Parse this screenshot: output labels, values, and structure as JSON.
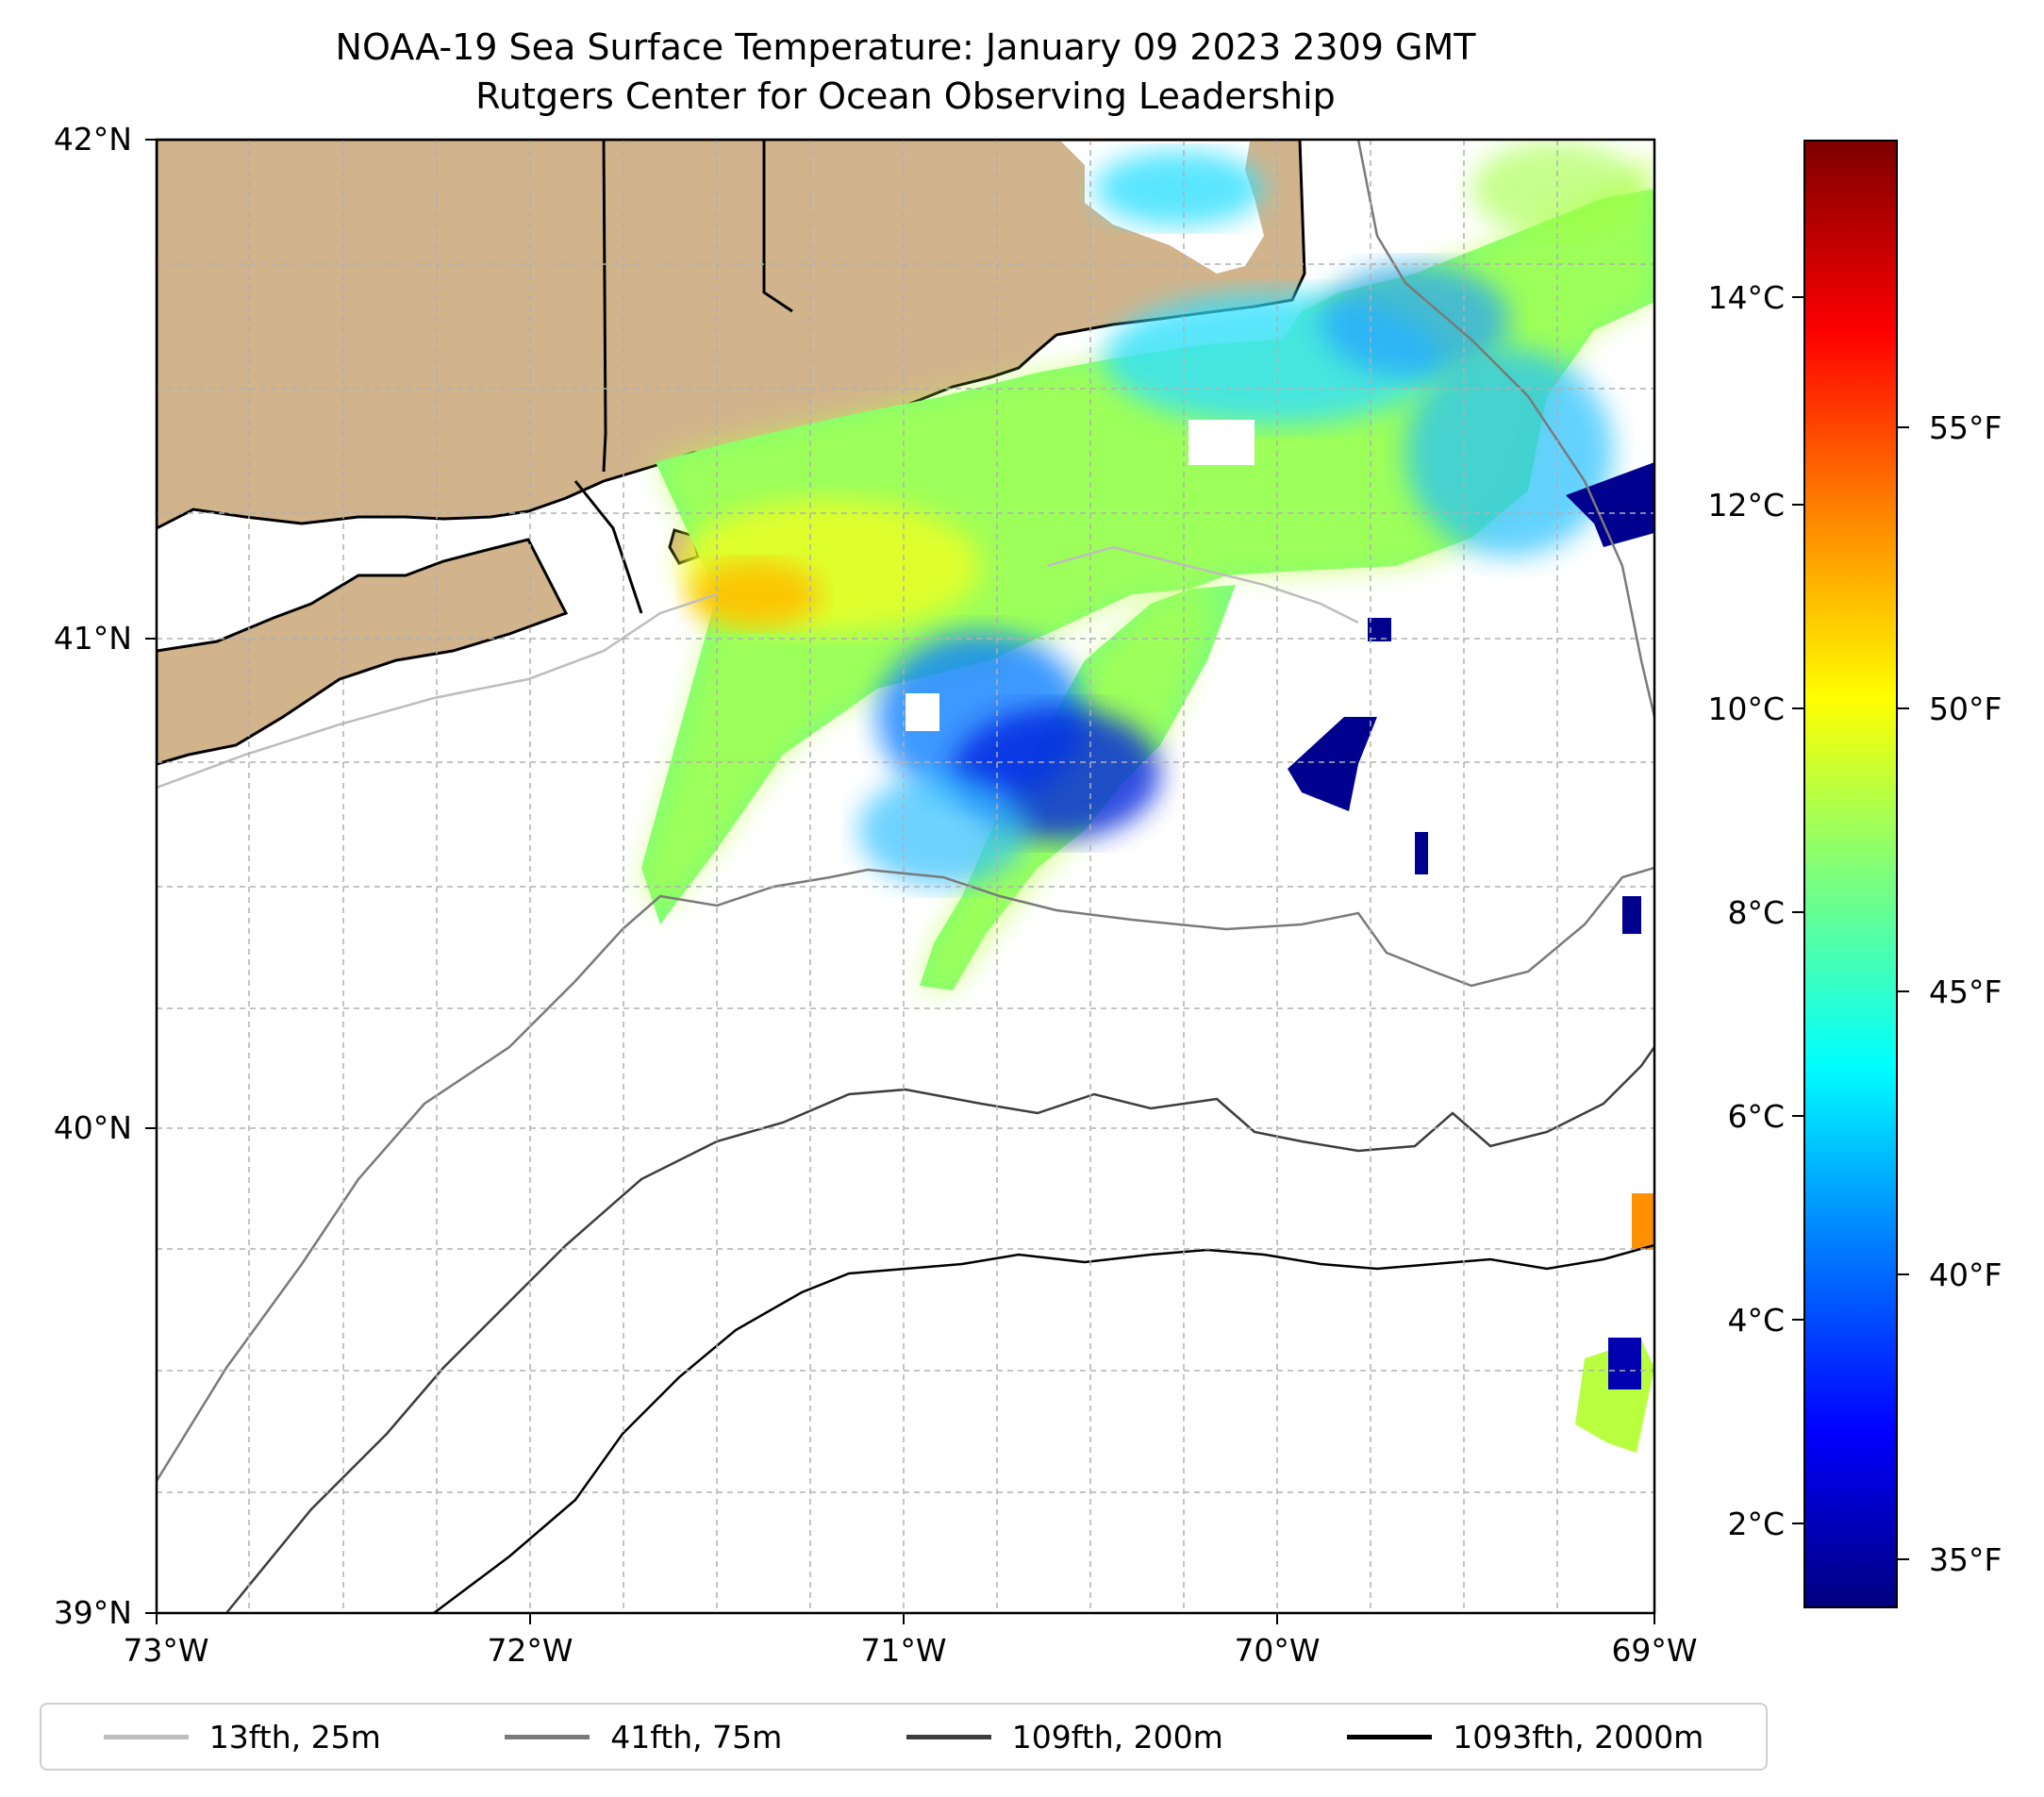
{
  "title": {
    "line1": "NOAA-19 Sea Surface Temperature: January 09 2023 2309 GMT",
    "line2": "Rutgers Center for Ocean Observing Leadership"
  },
  "axes": {
    "lat_ticks": [
      "42°N",
      "41°N",
      "40°N",
      "39°N"
    ],
    "lon_ticks": [
      "73°W",
      "72°W",
      "71°W",
      "70°W",
      "69°W"
    ],
    "lat_range": [
      39,
      42
    ],
    "lon_range": [
      -73,
      -69
    ]
  },
  "colorbar": {
    "celsius_ticks": [
      "14°C",
      "12°C",
      "10°C",
      "8°C",
      "6°C",
      "4°C",
      "2°C"
    ],
    "fahrenheit_ticks": [
      "55°F",
      "50°F",
      "45°F",
      "40°F",
      "35°F"
    ],
    "colormap": "jet"
  },
  "legend": [
    {
      "label": "13fth, 25m",
      "color": "#bdbdbd"
    },
    {
      "label": "41fth, 75m",
      "color": "#7a7a7a"
    },
    {
      "label": "109fth, 200m",
      "color": "#3d3d3d"
    },
    {
      "label": "1093fth, 2000m",
      "color": "#000000"
    }
  ],
  "colors": {
    "land": "#d2b48c",
    "gridline": "#b0b0b0"
  }
}
